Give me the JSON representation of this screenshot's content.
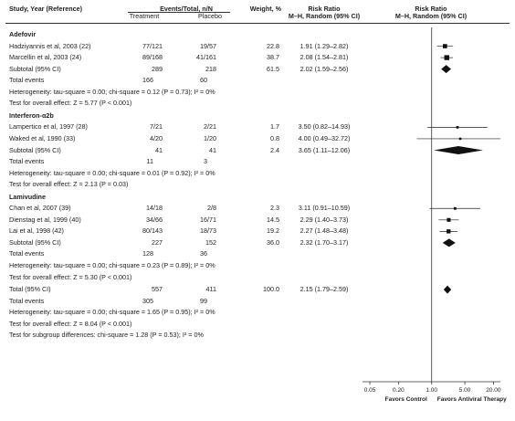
{
  "header": {
    "study": "Study, Year (Reference)",
    "events": "Events/Total, n/N",
    "treatment": "Treatment",
    "placebo": "Placebo",
    "weight": "Weight, %",
    "rr_left_1": "Risk Ratio",
    "rr_left_2": "M–H, Random (95% CI)",
    "rr_right_1": "Risk Ratio",
    "rr_right_2": "M–H, Random (95% CI)"
  },
  "groups": [
    {
      "name": "Adefovir",
      "studies": [
        {
          "label": "Hadziyannis et al, 2003 (22)",
          "treatment": "77/121",
          "placebo": "19/57",
          "weight": "22.8",
          "rr_text": "1.91 (1.29–2.82)"
        },
        {
          "label": "Marcellin et al, 2003 (24)",
          "treatment": "89/168",
          "placebo": "41/161",
          "weight": "38.7",
          "rr_text": "2.08 (1.54–2.81)"
        }
      ],
      "subtotal": {
        "label": "Subtotal (95% CI)",
        "treatment": "289",
        "placebo": "218",
        "weight": "61.5",
        "rr_text": "2.02 (1.59–2.56)"
      },
      "total_events": {
        "label": "Total events",
        "treatment": "166",
        "placebo": "60"
      },
      "heterogeneity": "Heterogeneity: tau-square = 0.00; chi-square = 0.12 (P = 0.73); I² = 0%",
      "overall": "Test for overall effect: Z = 5.77 (P < 0.001)"
    },
    {
      "name": "Interferon-α2b",
      "studies": [
        {
          "label": "Lampertico et al, 1997 (28)",
          "treatment": "7/21",
          "placebo": "2/21",
          "weight": "1.7",
          "rr_text": "3.50 (0.82–14.93)"
        },
        {
          "label": "Waked et al, 1990 (33)",
          "treatment": "4/20",
          "placebo": "1/20",
          "weight": "0.8",
          "rr_text": "4.00 (0.49–32.72)"
        }
      ],
      "subtotal": {
        "label": "Subtotal (95% CI)",
        "treatment": "41",
        "placebo": "41",
        "weight": "2.4",
        "rr_text": "3.65 (1.11–12.06)"
      },
      "total_events": {
        "label": "Total events",
        "treatment": "11",
        "placebo": "3"
      },
      "heterogeneity": "Heterogeneity: tau-square = 0.00; chi-square = 0.01 (P = 0.92); I² = 0%",
      "overall": "Test for overall effect: Z = 2.13 (P = 0.03)"
    },
    {
      "name": "Lamivudine",
      "studies": [
        {
          "label": "Chan et al, 2007 (39)",
          "treatment": "14/18",
          "placebo": "2/8",
          "weight": "2.3",
          "rr_text": "3.11 (0.91–10.59)"
        },
        {
          "label": "Dienstag et al, 1999 (40)",
          "treatment": "34/66",
          "placebo": "16/71",
          "weight": "14.5",
          "rr_text": "2.29 (1.40–3.73)"
        },
        {
          "label": "Lai et al, 1998 (42)",
          "treatment": "80/143",
          "placebo": "18/73",
          "weight": "19.2",
          "rr_text": "2.27 (1.48–3.48)"
        }
      ],
      "subtotal": {
        "label": "Subtotal (95% CI)",
        "treatment": "227",
        "placebo": "152",
        "weight": "36.0",
        "rr_text": "2.32 (1.70–3.17)"
      },
      "total_events": {
        "label": "Total events",
        "treatment": "128",
        "placebo": "36"
      },
      "heterogeneity": "Heterogeneity: tau-square = 0.00; chi-square = 0.23 (P = 0.89); I² = 0%",
      "overall": "Test for overall effect: Z = 5.30 (P < 0.001)"
    }
  ],
  "total": {
    "label": "Total (95% CI)",
    "treatment": "557",
    "placebo": "411",
    "weight": "100.0",
    "rr_text": "2.15 (1.79–2.59)"
  },
  "total_events": {
    "label": "Total events",
    "treatment": "305",
    "placebo": "99"
  },
  "total_heterogeneity": "Heterogeneity: tau-square = 0.00; chi-square = 1.65 (P = 0.95); I² = 0%",
  "total_overall": "Test for overall effect: Z = 8.04 (P < 0.001)",
  "subgroup_test": "Test for subgroup differences: chi-square = 1.28 (P = 0.53); I² = 0%",
  "axis": {
    "ticks": [
      0.05,
      0.2,
      1,
      5,
      20
    ],
    "tick_labels": [
      "0.05",
      "0.20",
      "1.00",
      "5.00",
      "20.00"
    ],
    "favors_left": "Favors Control",
    "favors_right": "Favors Antiviral Therapy"
  },
  "chart_data": {
    "type": "forest",
    "x_scale": "log",
    "xlim": [
      0.035,
      28
    ],
    "reference_line": 1,
    "estimates": [
      {
        "label": "Hadziyannis et al, 2003 (22)",
        "kind": "study",
        "rr": 1.91,
        "lo": 1.29,
        "hi": 2.82,
        "weight": 22.8
      },
      {
        "label": "Marcellin et al, 2003 (24)",
        "kind": "study",
        "rr": 2.08,
        "lo": 1.54,
        "hi": 2.81,
        "weight": 38.7
      },
      {
        "label": "Subtotal (95% CI)",
        "kind": "pooled",
        "rr": 2.02,
        "lo": 1.59,
        "hi": 2.56,
        "weight": 61.5
      },
      {
        "label": "Lampertico et al, 1997 (28)",
        "kind": "study",
        "rr": 3.5,
        "lo": 0.82,
        "hi": 14.93,
        "weight": 1.7
      },
      {
        "label": "Waked et al, 1990 (33)",
        "kind": "study",
        "rr": 4.0,
        "lo": 0.49,
        "hi": 32.72,
        "weight": 0.8
      },
      {
        "label": "Subtotal (95% CI)",
        "kind": "pooled",
        "rr": 3.65,
        "lo": 1.11,
        "hi": 12.06,
        "weight": 2.4
      },
      {
        "label": "Chan et al, 2007 (39)",
        "kind": "study",
        "rr": 3.11,
        "lo": 0.91,
        "hi": 10.59,
        "weight": 2.3
      },
      {
        "label": "Dienstag et al, 1999 (40)",
        "kind": "study",
        "rr": 2.29,
        "lo": 1.4,
        "hi": 3.73,
        "weight": 14.5
      },
      {
        "label": "Lai et al, 1998 (42)",
        "kind": "study",
        "rr": 2.27,
        "lo": 1.48,
        "hi": 3.48,
        "weight": 19.2
      },
      {
        "label": "Subtotal (95% CI)",
        "kind": "pooled",
        "rr": 2.32,
        "lo": 1.7,
        "hi": 3.17,
        "weight": 36.0
      },
      {
        "label": "Total (95% CI)",
        "kind": "pooled",
        "rr": 2.15,
        "lo": 1.79,
        "hi": 2.59,
        "weight": 100.0
      }
    ]
  }
}
